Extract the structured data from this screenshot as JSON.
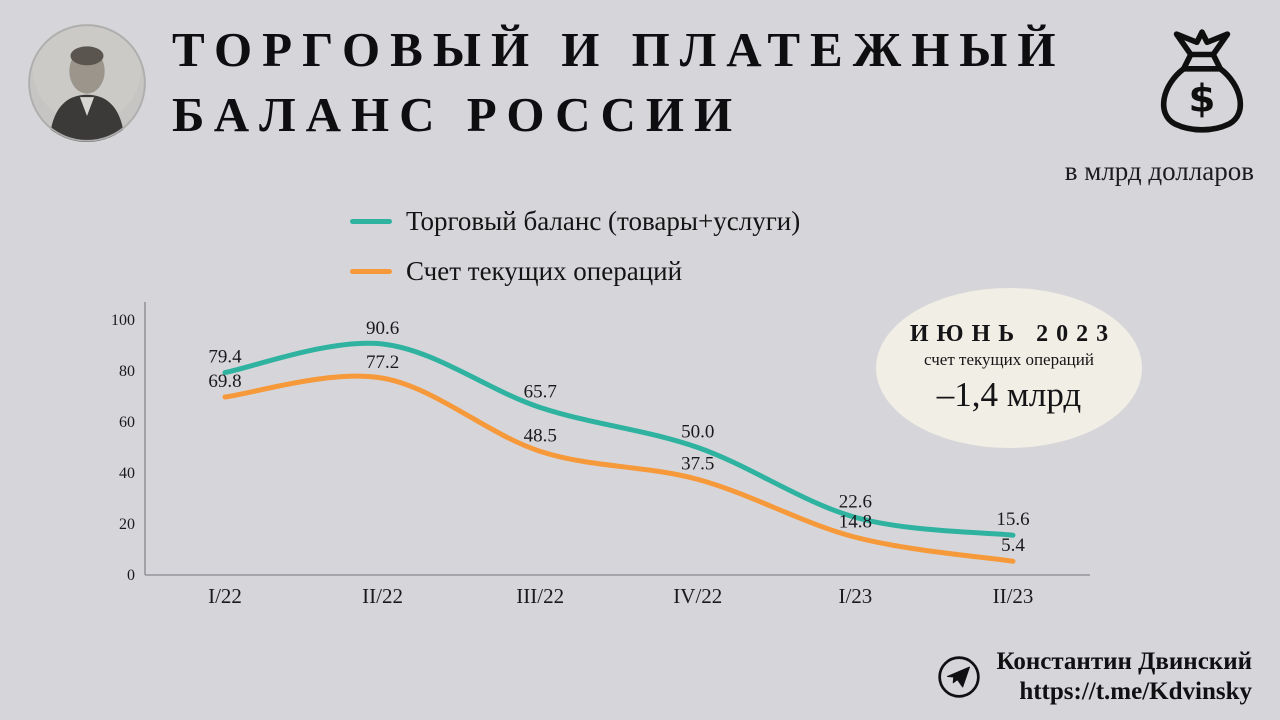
{
  "header": {
    "title_lines": [
      "ТОРГОВЫЙ И ПЛАТЕЖНЫЙ",
      "БАЛАНС РОССИИ"
    ],
    "unit_label": "в млрд долларов",
    "money_symbol": "$"
  },
  "legend": {
    "items": [
      {
        "label": "Торговый баланс (товары+услуги)"
      },
      {
        "label": "Счет текущих операций"
      }
    ]
  },
  "chart_data": {
    "type": "line",
    "categories": [
      "I/22",
      "II/22",
      "III/22",
      "IV/22",
      "I/23",
      "II/23"
    ],
    "series": [
      {
        "name": "Торговый баланс (товары+услуги)",
        "color": "#2fb3a0",
        "values": [
          79.4,
          90.6,
          65.7,
          50.0,
          22.6,
          15.6
        ]
      },
      {
        "name": "Счет текущих операций",
        "color": "#f6993b",
        "values": [
          69.8,
          77.2,
          48.5,
          37.5,
          14.8,
          5.4
        ]
      }
    ],
    "ylim": [
      0,
      100
    ],
    "yticks": [
      0,
      20,
      40,
      60,
      80,
      100
    ],
    "grid": false,
    "legend_position": "top",
    "unit": "млрд долларов",
    "decimal_separator": "."
  },
  "callout": {
    "title": "ИЮНЬ 2023",
    "subtitle": "счет текущих операций",
    "value": "–1,4 млрд",
    "background": "#f1eee5"
  },
  "footer": {
    "author": "Константин Двинский",
    "url": "https://t.me/Kdvinsky"
  },
  "colors": {
    "background": "#d6d6da",
    "teal": "#2fb3a0",
    "orange": "#f6993b",
    "axis": "#94949a",
    "text": "#141416"
  }
}
